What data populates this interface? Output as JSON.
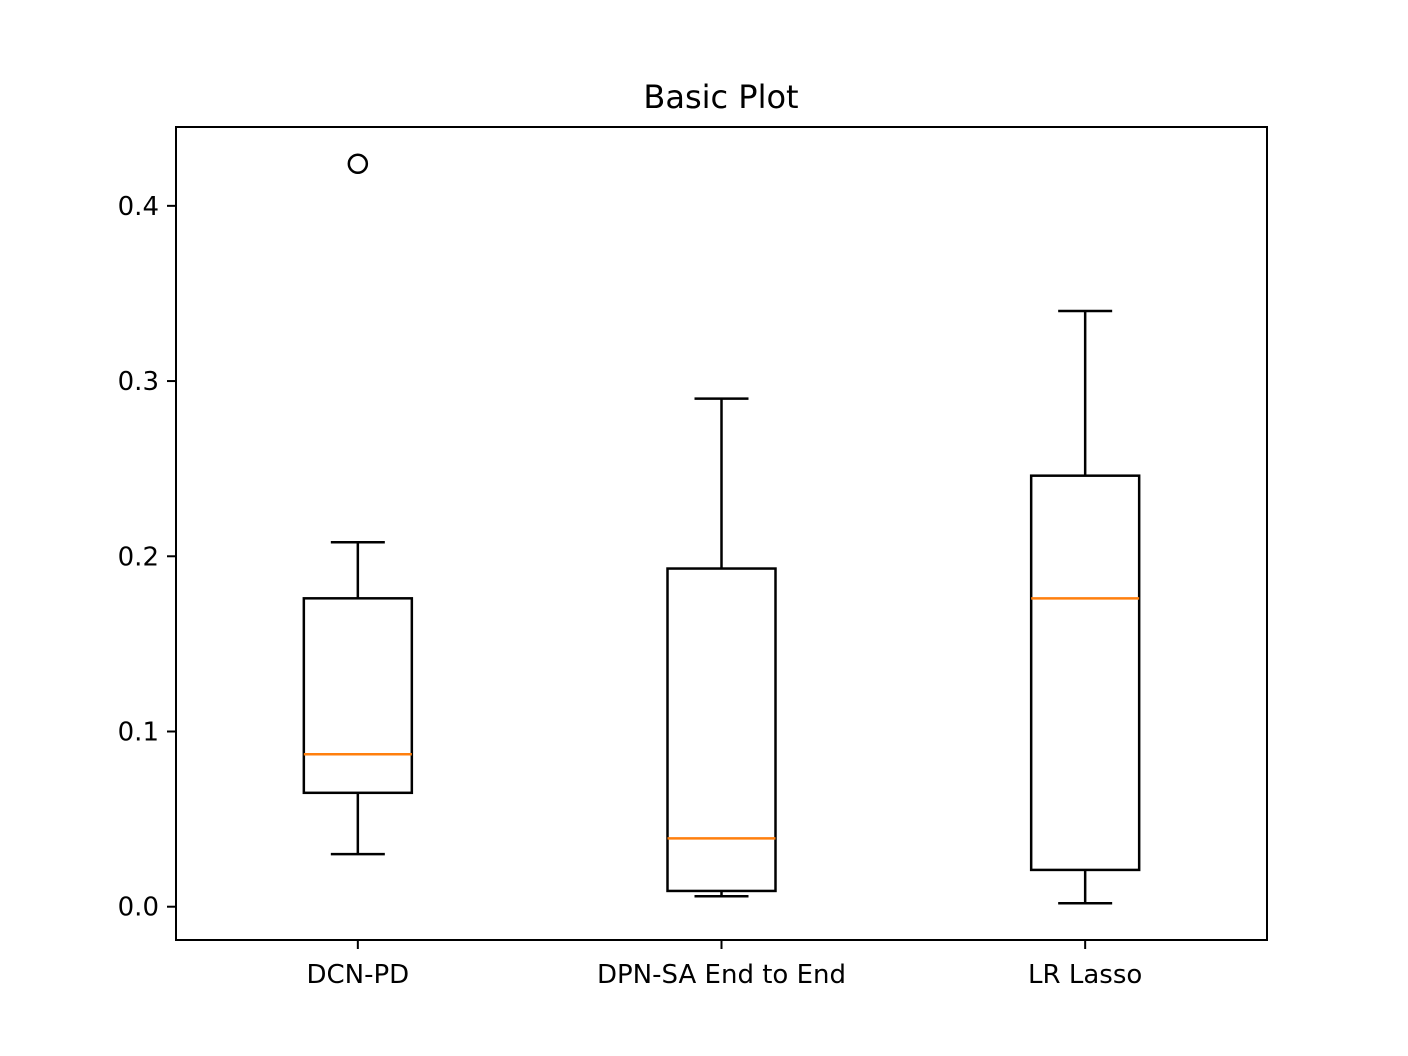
{
  "chart_data": {
    "type": "box",
    "title": "Basic Plot",
    "xlabel": "",
    "ylabel": "",
    "ylim": [
      -0.019,
      0.445
    ],
    "yticks": [
      0.0,
      0.1,
      0.2,
      0.3,
      0.4
    ],
    "ytick_labels": [
      "0.0",
      "0.1",
      "0.2",
      "0.3",
      "0.4"
    ],
    "categories": [
      "DCN-PD",
      "DPN-SA End to End",
      "LR Lasso"
    ],
    "boxes": [
      {
        "whisker_low": 0.03,
        "q1": 0.065,
        "median": 0.087,
        "q3": 0.176,
        "whisker_high": 0.208,
        "outliers": [
          0.424
        ]
      },
      {
        "whisker_low": 0.006,
        "q1": 0.009,
        "median": 0.039,
        "q3": 0.193,
        "whisker_high": 0.29,
        "outliers": []
      },
      {
        "whisker_low": 0.002,
        "q1": 0.021,
        "median": 0.176,
        "q3": 0.246,
        "whisker_high": 0.34,
        "outliers": []
      }
    ],
    "grid": false,
    "legend": "none"
  },
  "colors": {
    "box": "#000000",
    "median": "#ff7f0e",
    "outlier": "#000000",
    "background": "#ffffff"
  }
}
